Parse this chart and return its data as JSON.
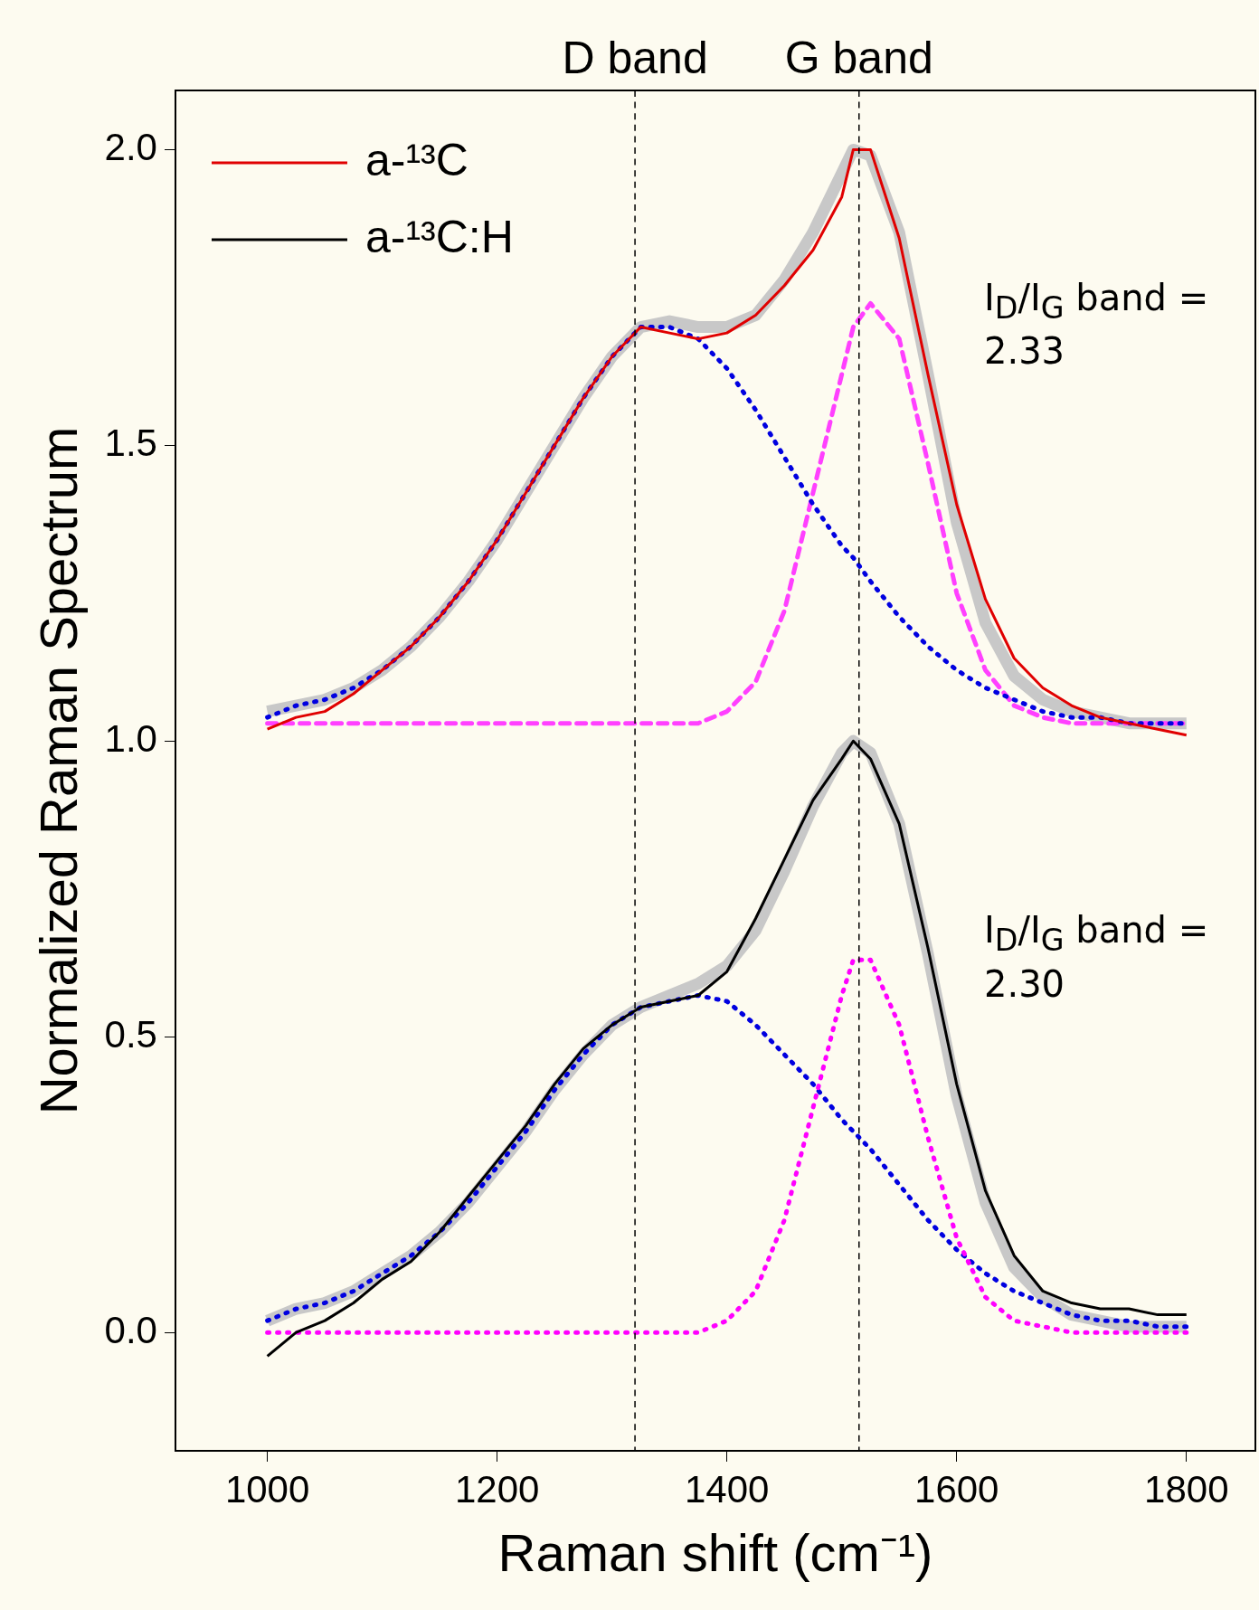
{
  "chart_data": {
    "type": "line",
    "xlabel": "Raman shift (cm⁻¹)",
    "ylabel": "Normalized Raman Spectrum",
    "x": [
      1000,
      1025,
      1050,
      1075,
      1100,
      1125,
      1150,
      1175,
      1200,
      1225,
      1250,
      1275,
      1300,
      1325,
      1350,
      1375,
      1400,
      1425,
      1450,
      1475,
      1500,
      1510,
      1525,
      1550,
      1575,
      1600,
      1625,
      1650,
      1675,
      1700,
      1725,
      1750,
      1775,
      1800
    ],
    "xlim": [
      920,
      1860
    ],
    "xticks": [
      1000,
      1200,
      1400,
      1600,
      1800
    ],
    "ylim": [
      -0.2,
      2.1
    ],
    "yticks": [
      {
        "value": 0,
        "label": "0.0"
      },
      {
        "value": 0.5,
        "label": "0.5"
      },
      {
        "value": 1,
        "label": "1.0"
      },
      {
        "value": 1.5,
        "label": "1.5"
      },
      {
        "value": 2,
        "label": "2.0"
      }
    ],
    "grid": false,
    "legend": "top left",
    "marker": "none",
    "series": [
      {
        "color": "#c8c8c8",
        "line_style": "solid",
        "values": [
          1.05,
          1.06,
          1.07,
          1.09,
          1.12,
          1.16,
          1.21,
          1.27,
          1.34,
          1.42,
          1.5,
          1.58,
          1.65,
          1.7,
          1.71,
          1.7,
          1.7,
          1.72,
          1.78,
          1.86,
          1.96,
          2.0,
          1.99,
          1.86,
          1.62,
          1.37,
          1.2,
          1.11,
          1.07,
          1.05,
          1.04,
          1.03,
          1.03,
          1.03
        ]
      },
      {
        "color": "#c8c8c8",
        "line_style": "solid",
        "values": [
          0.02,
          0.04,
          0.05,
          0.07,
          0.1,
          0.13,
          0.17,
          0.22,
          0.28,
          0.34,
          0.41,
          0.47,
          0.52,
          0.55,
          0.57,
          0.59,
          0.62,
          0.68,
          0.78,
          0.89,
          0.98,
          1.0,
          0.98,
          0.86,
          0.64,
          0.4,
          0.22,
          0.11,
          0.06,
          0.03,
          0.02,
          0.01,
          0.01,
          0.01
        ]
      },
      {
        "color": "#ff40ff",
        "line_style": "dashed",
        "values": [
          1.03,
          1.03,
          1.03,
          1.03,
          1.03,
          1.03,
          1.03,
          1.03,
          1.03,
          1.03,
          1.03,
          1.03,
          1.03,
          1.03,
          1.03,
          1.03,
          1.05,
          1.1,
          1.22,
          1.42,
          1.62,
          1.7,
          1.74,
          1.68,
          1.47,
          1.25,
          1.12,
          1.06,
          1.04,
          1.03,
          1.03,
          1.03,
          1.03,
          1.03
        ]
      },
      {
        "color": "#0000e0",
        "line_style": "dotted",
        "values": [
          1.04,
          1.06,
          1.07,
          1.09,
          1.12,
          1.16,
          1.21,
          1.27,
          1.34,
          1.42,
          1.5,
          1.58,
          1.65,
          1.7,
          1.7,
          1.68,
          1.63,
          1.56,
          1.48,
          1.4,
          1.33,
          1.31,
          1.27,
          1.21,
          1.16,
          1.12,
          1.09,
          1.07,
          1.05,
          1.04,
          1.04,
          1.03,
          1.03,
          1.03
        ]
      },
      {
        "color": "#0000e0",
        "line_style": "dotted",
        "values": [
          0.02,
          0.04,
          0.05,
          0.07,
          0.1,
          0.13,
          0.17,
          0.22,
          0.28,
          0.34,
          0.41,
          0.47,
          0.52,
          0.55,
          0.56,
          0.57,
          0.56,
          0.52,
          0.47,
          0.42,
          0.36,
          0.34,
          0.31,
          0.25,
          0.19,
          0.14,
          0.1,
          0.07,
          0.05,
          0.03,
          0.02,
          0.02,
          0.01,
          0.01
        ]
      },
      {
        "color": "#ff00ff",
        "line_style": "dotted",
        "values": [
          0,
          0,
          0,
          0,
          0,
          0,
          0,
          0,
          0,
          0,
          0,
          0,
          0,
          0,
          0,
          0,
          0.02,
          0.07,
          0.19,
          0.38,
          0.57,
          0.63,
          0.63,
          0.52,
          0.33,
          0.16,
          0.06,
          0.02,
          0.01,
          0,
          0,
          0,
          0,
          0
        ]
      },
      {
        "name": "a-¹³C",
        "color": "#e00000",
        "line_style": "solid",
        "values": [
          1.02,
          1.04,
          1.05,
          1.08,
          1.12,
          1.16,
          1.21,
          1.27,
          1.34,
          1.42,
          1.5,
          1.58,
          1.65,
          1.7,
          1.69,
          1.68,
          1.69,
          1.72,
          1.77,
          1.83,
          1.92,
          2.0,
          2.0,
          1.85,
          1.62,
          1.4,
          1.24,
          1.14,
          1.09,
          1.06,
          1.04,
          1.03,
          1.02,
          1.01
        ]
      },
      {
        "name": "a-¹³C:H",
        "color": "#000000",
        "line_style": "solid",
        "values": [
          -0.04,
          0.0,
          0.02,
          0.05,
          0.09,
          0.12,
          0.17,
          0.23,
          0.29,
          0.35,
          0.42,
          0.48,
          0.52,
          0.55,
          0.56,
          0.57,
          0.61,
          0.7,
          0.8,
          0.9,
          0.97,
          1.0,
          0.97,
          0.86,
          0.65,
          0.42,
          0.24,
          0.13,
          0.07,
          0.05,
          0.04,
          0.04,
          0.03,
          0.03
        ]
      }
    ],
    "ref_lines": [
      {
        "axis": "x",
        "value": 1320,
        "label": "D band",
        "line_style": "dashed",
        "color": "#000000"
      },
      {
        "axis": "x",
        "value": 1515,
        "label": "G band",
        "line_style": "dashed",
        "color": "#000000"
      }
    ],
    "annotations": [
      "I$_{D}$/I$_{G}$ band = 2.33",
      "I$_{D}$/I$_{G}$ band = 2.30"
    ]
  }
}
